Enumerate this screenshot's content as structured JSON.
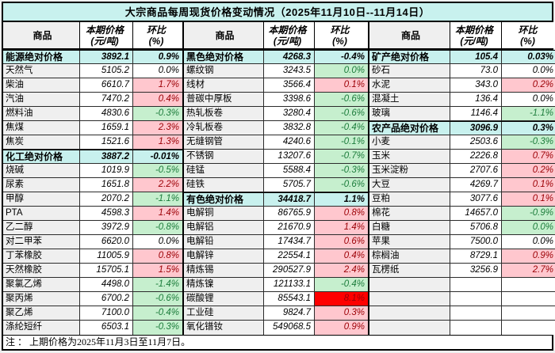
{
  "title": "大宗商品每周现货价格变动情况（2025年11月10日--11月14日）",
  "columns": {
    "commodity": "商品",
    "price_line1": "本期价格",
    "price_line2": "(元/吨)",
    "pct_line1": "环比",
    "pct_line2": "(%)"
  },
  "footer_note": "注 ： 上期价格为2025年11月3日至11月7日。",
  "colors": {
    "section_bg": "#c8f1ee",
    "title_bg": "#c8f1ee",
    "up_bg": "#ffc7ce",
    "up_text": "#9c0006",
    "down_bg": "#c6efce",
    "down_text": "#1d7d3c",
    "alert_bg": "#fe0000",
    "alert_text": "#9c0006",
    "name_col_bg": "#efefef",
    "border": "#000000"
  },
  "groups": [
    {
      "rows": [
        {
          "name": "能源绝对价格",
          "price": "3892.1",
          "pct": "0.9%",
          "style": "section"
        },
        {
          "name": "天然气",
          "price": "5105.2",
          "pct": "0.0%",
          "style": "white"
        },
        {
          "name": "柴油",
          "price": "6610.7",
          "pct": "1.7%",
          "style": "pink"
        },
        {
          "name": "汽油",
          "price": "7470.2",
          "pct": "0.4%",
          "style": "pink"
        },
        {
          "name": "燃料油",
          "price": "4830.6",
          "pct": "-0.3%",
          "style": "green"
        },
        {
          "name": "焦煤",
          "price": "1659.1",
          "pct": "2.3%",
          "style": "pink"
        },
        {
          "name": "焦炭",
          "price": "1521.6",
          "pct": "1.3%",
          "style": "pink"
        },
        {
          "name": "化工绝对价格",
          "price": "3887.2",
          "pct": "-0.01%",
          "style": "section"
        },
        {
          "name": "烧碱",
          "price": "1019.9",
          "pct": "-0.5%",
          "style": "green"
        },
        {
          "name": "尿素",
          "price": "1651.8",
          "pct": "2.2%",
          "style": "pink"
        },
        {
          "name": "甲醇",
          "price": "2070.2",
          "pct": "-1.1%",
          "style": "green"
        },
        {
          "name": "PTA",
          "price": "4598.3",
          "pct": "1.4%",
          "style": "pink"
        },
        {
          "name": "乙二醇",
          "price": "3972.9",
          "pct": "-0.8%",
          "style": "green"
        },
        {
          "name": "对二甲苯",
          "price": "6620.0",
          "pct": "0.0%",
          "style": "white"
        },
        {
          "name": "丁苯橡胶",
          "price": "11005.9",
          "pct": "0.8%",
          "style": "pink"
        },
        {
          "name": "天然橡胶",
          "price": "15705.1",
          "pct": "1.5%",
          "style": "pink"
        },
        {
          "name": "聚氯乙烯",
          "price": "4498.0",
          "pct": "-1.4%",
          "style": "green"
        },
        {
          "name": "聚丙烯",
          "price": "6700.2",
          "pct": "-0.6%",
          "style": "green"
        },
        {
          "name": "聚乙烯",
          "price": "7100.0",
          "pct": "-0.4%",
          "style": "green"
        },
        {
          "name": "涤纶短纤",
          "price": "6503.1",
          "pct": "-0.3%",
          "style": "green"
        }
      ]
    },
    {
      "rows": [
        {
          "name": "黑色绝对价格",
          "price": "4268.3",
          "pct": "-0.4%",
          "style": "section"
        },
        {
          "name": "螺纹钢",
          "price": "3243.5",
          "pct": "0.0%",
          "style": "green"
        },
        {
          "name": "线材",
          "price": "3566.4",
          "pct": "0.1%",
          "style": "pink"
        },
        {
          "name": "普碳中厚板",
          "price": "3398.6",
          "pct": "-0.6%",
          "style": "green"
        },
        {
          "name": "热轧板卷",
          "price": "3280.4",
          "pct": "-0.6%",
          "style": "green"
        },
        {
          "name": "冷轧板卷",
          "price": "3832.8",
          "pct": "-0.4%",
          "style": "green"
        },
        {
          "name": "无缝钢管",
          "price": "4240.6",
          "pct": "-0.1%",
          "style": "green"
        },
        {
          "name": "不锈钢",
          "price": "13207.6",
          "pct": "-0.7%",
          "style": "green"
        },
        {
          "name": "硅锰",
          "price": "5588.4",
          "pct": "-0.3%",
          "style": "green"
        },
        {
          "name": "硅铁",
          "price": "5705.7",
          "pct": "-0.6%",
          "style": "green"
        },
        {
          "name": "有色绝对价格",
          "price": "34418.7",
          "pct": "1.1%",
          "style": "section"
        },
        {
          "name": "电解铜",
          "price": "86765.9",
          "pct": "0.8%",
          "style": "pink"
        },
        {
          "name": "电解铝",
          "price": "21670.9",
          "pct": "1.4%",
          "style": "pink"
        },
        {
          "name": "电解铅",
          "price": "17434.7",
          "pct": "0.6%",
          "style": "pink"
        },
        {
          "name": "电解锌",
          "price": "22554.1",
          "pct": "0.4%",
          "style": "pink"
        },
        {
          "name": "精炼锡",
          "price": "290527.9",
          "pct": "2.4%",
          "style": "pink"
        },
        {
          "name": "精炼镍",
          "price": "121133.1",
          "pct": "-0.4%",
          "style": "green"
        },
        {
          "name": "碳酸锂",
          "price": "85543.1",
          "pct": "8.1%",
          "style": "red"
        },
        {
          "name": "工业硅",
          "price": "9824.7",
          "pct": "0.3%",
          "style": "pink"
        },
        {
          "name": "氧化镨钕",
          "price": "549068.5",
          "pct": "0.9%",
          "style": "pink"
        }
      ]
    },
    {
      "rows": [
        {
          "name": "矿产绝对价格",
          "price": "105.4",
          "pct": "0.03%",
          "style": "section"
        },
        {
          "name": "砂石",
          "price": "73.0",
          "pct": "0.0%",
          "style": "white"
        },
        {
          "name": "水泥",
          "price": "343.0",
          "pct": "0.2%",
          "style": "pink"
        },
        {
          "name": "混凝土",
          "price": "136.4",
          "pct": "0.0%",
          "style": "white"
        },
        {
          "name": "玻璃",
          "price": "1146.4",
          "pct": "-1.1%",
          "style": "green"
        },
        {
          "name": "农产品绝对价格",
          "price": "3096.9",
          "pct": "0.3%",
          "style": "section"
        },
        {
          "name": "小麦",
          "price": "2503.6",
          "pct": "-0.3%",
          "style": "green"
        },
        {
          "name": "玉米",
          "price": "2226.8",
          "pct": "0.7%",
          "style": "pink"
        },
        {
          "name": "玉米淀粉",
          "price": "2707.6",
          "pct": "0.2%",
          "style": "pink"
        },
        {
          "name": "大豆",
          "price": "4269.7",
          "pct": "0.1%",
          "style": "pink"
        },
        {
          "name": "豆粕",
          "price": "3077.6",
          "pct": "0.1%",
          "style": "pink"
        },
        {
          "name": "棉花",
          "price": "14657.0",
          "pct": "-0.9%",
          "style": "green"
        },
        {
          "name": "白糖",
          "price": "5706.8",
          "pct": "0.0%",
          "style": "green"
        },
        {
          "name": "苹果",
          "price": "7500.0",
          "pct": "0.0%",
          "style": "white"
        },
        {
          "name": "棕榈油",
          "price": "8729.1",
          "pct": "0.9%",
          "style": "pink"
        },
        {
          "name": "瓦楞纸",
          "price": "3256.9",
          "pct": "2.7%",
          "style": "pink"
        },
        {
          "name": "",
          "price": "",
          "pct": "",
          "style": "empty"
        },
        {
          "name": "",
          "price": "",
          "pct": "",
          "style": "empty"
        },
        {
          "name": "",
          "price": "",
          "pct": "",
          "style": "empty"
        },
        {
          "name": "",
          "price": "",
          "pct": "",
          "style": "empty"
        }
      ]
    }
  ]
}
